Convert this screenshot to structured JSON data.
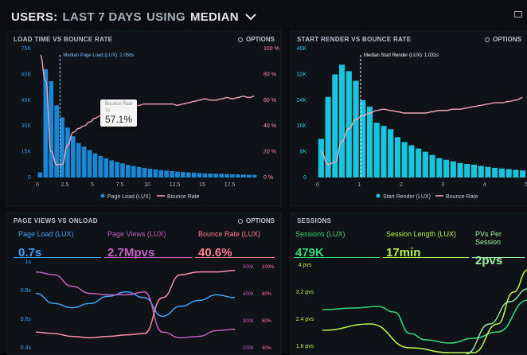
{
  "header": {
    "users_label": "USERS:",
    "range_label": "LAST 7 DAYS",
    "using_label": "USING",
    "method_label": "MEDIAN"
  },
  "panels": {
    "load_time": {
      "title": "LOAD TIME VS BOUNCE RATE",
      "options": "OPTIONS",
      "median_marker": "Median Page Load (LUX): 2.056s",
      "tooltip": {
        "label": "Bounce Rate",
        "sub": "1s",
        "value": "57.1%"
      },
      "legend": [
        "Page Load (LUX)",
        "Bounce Rate"
      ]
    },
    "start_render": {
      "title": "START RENDER VS BOUNCE RATE",
      "options": "OPTIONS",
      "median_marker": "Median Start Render (LUX): 1.031s",
      "legend": [
        "Start Render (LUX)",
        "Bounce Rate"
      ]
    },
    "page_views": {
      "title": "PAGE VIEWS VS ONLOAD",
      "options": "OPTIONS",
      "kpis": [
        {
          "label": "Page Load (LUX)",
          "value": "0.7s",
          "color": "#3ba3ff"
        },
        {
          "label": "Page Views (LUX)",
          "value": "2.7Mpvs",
          "color": "#c25fbf"
        },
        {
          "label": "Bounce Rate (LUX)",
          "value": "40.6%",
          "color": "#ff7c93"
        }
      ]
    },
    "sessions": {
      "title": "SESSIONS",
      "kpis": [
        {
          "label": "Sessions (LUX)",
          "value": "479K",
          "color": "#34d67a"
        },
        {
          "label": "Session Length (LUX)",
          "value": "17min",
          "color": "#b8f04a"
        },
        {
          "label": "PVs Per Session",
          "value": "2pvs",
          "color": "#9ef0a4"
        }
      ]
    }
  },
  "chart_data": [
    {
      "type": "bar",
      "title": "LOAD TIME VS BOUNCE RATE",
      "x_ticks": [
        "0",
        "2.5",
        "5",
        "7.5",
        "10",
        "12.5",
        "15",
        "17.5"
      ],
      "y_left_ticks": [
        "0",
        "15K",
        "30K",
        "45K",
        "60K",
        "75K"
      ],
      "y_right_ticks": [
        "0 %",
        "20 %",
        "40 %",
        "60 %",
        "80 %",
        "100 %"
      ],
      "ylim": [
        0,
        75000
      ],
      "bar_values": [
        3000,
        63000,
        56000,
        42000,
        35000,
        29000,
        24000,
        20000,
        18000,
        16000,
        14000,
        12500,
        11200,
        10000,
        9000,
        8200,
        7400,
        6700,
        6100,
        5600,
        5100,
        4700,
        4300,
        4000,
        3700,
        3400,
        3200,
        3000,
        2800,
        2600,
        2400,
        2300,
        2200,
        2100,
        2000,
        1900,
        1800,
        1700,
        1600,
        1500
      ],
      "line_name": "Bounce Rate",
      "line_values": [
        95,
        75,
        20,
        10,
        10,
        25,
        35,
        38,
        40,
        43,
        46,
        48,
        50,
        51,
        52,
        53,
        54,
        55,
        56,
        57,
        57,
        57,
        57,
        57,
        57,
        56,
        57,
        58,
        59,
        60,
        61,
        60,
        60,
        61,
        62,
        61,
        62,
        63,
        62,
        63
      ]
    },
    {
      "type": "bar",
      "title": "START RENDER VS BOUNCE RATE",
      "x_ticks": [
        "0",
        "1",
        "2",
        "3",
        "4",
        "5"
      ],
      "y_left_ticks": [
        "0",
        "8K",
        "16K",
        "24K",
        "32K",
        "40K"
      ],
      "ylim": [
        0,
        40000
      ],
      "bar_values": [
        12000,
        25000,
        32000,
        35000,
        33000,
        30000,
        24000,
        22000,
        17000,
        16000,
        15000,
        12500,
        11000,
        10000,
        9000,
        8000,
        7000,
        6000,
        5500,
        5000,
        4500,
        4200,
        4000,
        3600,
        3300,
        3000,
        2800,
        2600,
        2400,
        2200
      ],
      "line_name": "Bounce Rate",
      "line_values": [
        20,
        10,
        12,
        28,
        38,
        45,
        48,
        50,
        52,
        53,
        52,
        51,
        50,
        50,
        50,
        50,
        51,
        52,
        52,
        53,
        53,
        54,
        55,
        56,
        57,
        58,
        58,
        59,
        60,
        62
      ]
    },
    {
      "type": "line",
      "title": "PAGE VIEWS VS ONLOAD",
      "y_left_ticks": [
        "1s",
        "0.8s",
        "0.6s",
        "0.4s"
      ],
      "y_right_ticks": [
        "500K",
        "400K",
        "300K",
        "200K"
      ],
      "y_right2_ticks": [
        "100%",
        "80%",
        "60%",
        "40%"
      ],
      "series": [
        {
          "name": "Page Load (LUX)",
          "values": [
            0.73,
            0.66,
            0.63,
            0.66,
            0.71,
            0.74,
            0.7,
            0.57,
            0.64,
            0.68,
            0.72,
            0.7
          ]
        },
        {
          "name": "Page Views (LUX)",
          "values": [
            0.88,
            0.86,
            0.78,
            0.73,
            0.72,
            0.72,
            0.74,
            0.46,
            0.42,
            0.43,
            0.47,
            0.48
          ]
        },
        {
          "name": "Bounce Rate (LUX)",
          "values": [
            0.46,
            0.45,
            0.43,
            0.42,
            0.43,
            0.44,
            0.45,
            0.7,
            0.86,
            0.88,
            0.88,
            0.89
          ]
        }
      ]
    },
    {
      "type": "line",
      "title": "SESSIONS",
      "y_left_ticks": [
        "4 pvs",
        "3.2 pvs",
        "2.4 pvs",
        "1.6 pvs"
      ]
    }
  ]
}
